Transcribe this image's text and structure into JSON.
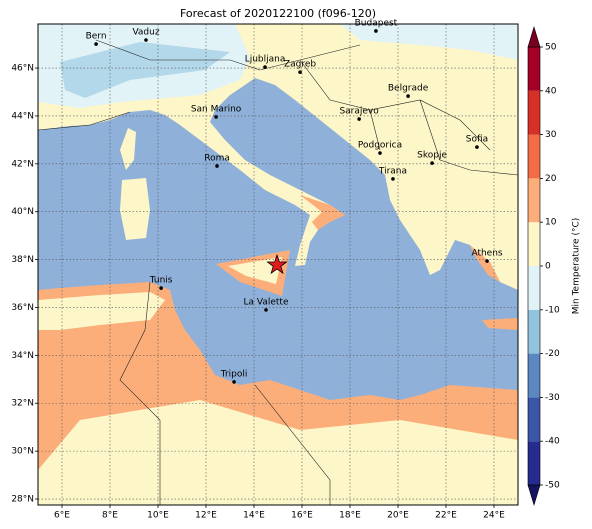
{
  "chart_data": {
    "type": "map",
    "title": "Forecast of 2020122100 (f096-120)",
    "xlim": [
      5,
      25
    ],
    "ylim": [
      27.75,
      47.84
    ],
    "xticks": [
      {
        "value": 6,
        "label": "6°E"
      },
      {
        "value": 8,
        "label": "8°E"
      },
      {
        "value": 10,
        "label": "10°E"
      },
      {
        "value": 12,
        "label": "12°E"
      },
      {
        "value": 14,
        "label": "14°E"
      },
      {
        "value": 16,
        "label": "16°E"
      },
      {
        "value": 18,
        "label": "18°E"
      },
      {
        "value": 20,
        "label": "20°E"
      },
      {
        "value": 22,
        "label": "22°E"
      },
      {
        "value": 24,
        "label": "24°E"
      }
    ],
    "yticks": [
      {
        "value": 28,
        "label": "28°N"
      },
      {
        "value": 30,
        "label": "30°N"
      },
      {
        "value": 32,
        "label": "32°N"
      },
      {
        "value": 34,
        "label": "34°N"
      },
      {
        "value": 36,
        "label": "36°N"
      },
      {
        "value": 38,
        "label": "38°N"
      },
      {
        "value": 40,
        "label": "40°N"
      },
      {
        "value": 42,
        "label": "42°N"
      },
      {
        "value": 44,
        "label": "44°N"
      },
      {
        "value": 46,
        "label": "46°N"
      }
    ],
    "grid": true,
    "cities": [
      {
        "name": "Bern",
        "lon": 7.42,
        "lat": 47.0
      },
      {
        "name": "Vaduz",
        "lon": 9.5,
        "lat": 47.17
      },
      {
        "name": "Budapest",
        "lon": 19.08,
        "lat": 47.55
      },
      {
        "name": "Ljubljana",
        "lon": 14.46,
        "lat": 46.04
      },
      {
        "name": "Zagreb",
        "lon": 15.92,
        "lat": 45.83
      },
      {
        "name": "San Marino",
        "lon": 12.42,
        "lat": 43.96
      },
      {
        "name": "Belgrade",
        "lon": 20.42,
        "lat": 44.83
      },
      {
        "name": "Sarajevo",
        "lon": 18.38,
        "lat": 43.87
      },
      {
        "name": "Sofia",
        "lon": 23.29,
        "lat": 42.7
      },
      {
        "name": "Roma",
        "lon": 12.46,
        "lat": 41.91
      },
      {
        "name": "Podgorica",
        "lon": 19.25,
        "lat": 42.45
      },
      {
        "name": "Skopje",
        "lon": 21.42,
        "lat": 42.03
      },
      {
        "name": "Tirana",
        "lon": 19.79,
        "lat": 41.37
      },
      {
        "name": "Athens",
        "lon": 23.71,
        "lat": 37.94
      },
      {
        "name": "Tunis",
        "lon": 10.13,
        "lat": 36.81
      },
      {
        "name": "La Valette",
        "lon": 14.5,
        "lat": 35.9
      },
      {
        "name": "Tripoli",
        "lon": 13.17,
        "lat": 32.89
      }
    ],
    "marker": {
      "lon": 14.96,
      "lat": 37.77,
      "color": "#e31a1c"
    },
    "colorbar": {
      "label": "Min Temperature (°C)",
      "lim": [
        -50,
        50
      ],
      "ticks": [
        -50,
        -40,
        -30,
        -20,
        -10,
        0,
        10,
        20,
        30,
        40,
        50
      ],
      "colors": [
        "#262c8f",
        "#3b56a6",
        "#5b88c0",
        "#94c3dd",
        "#e2f3f8",
        "#fdf6c8",
        "#fcae7a",
        "#f26c45",
        "#d73027",
        "#a50026"
      ],
      "under_color": "#141463",
      "over_color": "#7a0022"
    }
  }
}
